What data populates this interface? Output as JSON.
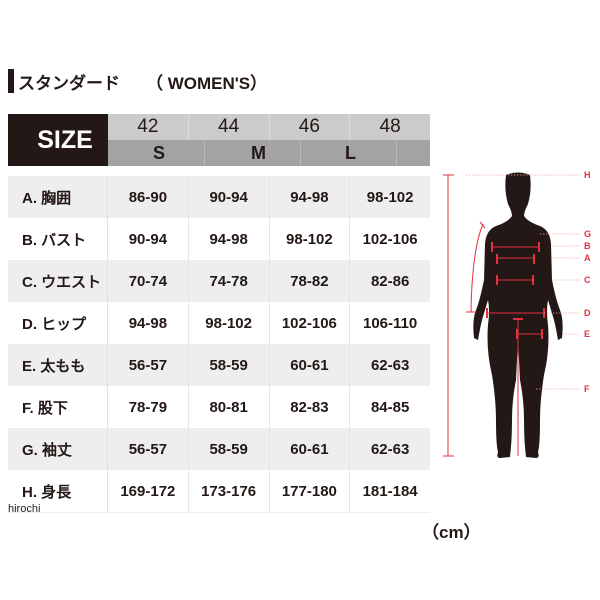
{
  "title": {
    "main": "スタンダード",
    "sub": "（ WOMEN'S）"
  },
  "header": {
    "size_label": "SIZE",
    "numbers": [
      "42",
      "44",
      "46",
      "48"
    ],
    "letters": [
      "S",
      "M",
      "L"
    ]
  },
  "rows": [
    {
      "label": "A. 胸囲",
      "values": [
        "86-90",
        "90-94",
        "94-98",
        "98-102"
      ]
    },
    {
      "label": "B. バスト",
      "values": [
        "90-94",
        "94-98",
        "98-102",
        "102-106"
      ]
    },
    {
      "label": "C. ウエスト",
      "values": [
        "70-74",
        "74-78",
        "78-82",
        "82-86"
      ]
    },
    {
      "label": "D. ヒップ",
      "values": [
        "94-98",
        "98-102",
        "102-106",
        "106-110"
      ]
    },
    {
      "label": "E. 太もも",
      "values": [
        "56-57",
        "58-59",
        "60-61",
        "62-63"
      ]
    },
    {
      "label": "F. 股下",
      "values": [
        "78-79",
        "80-81",
        "82-83",
        "84-85"
      ]
    },
    {
      "label": "G. 袖丈",
      "values": [
        "56-57",
        "58-59",
        "60-61",
        "62-63"
      ]
    },
    {
      "label": "H. 身長",
      "values": [
        "169-172",
        "173-176",
        "177-180",
        "181-184"
      ]
    }
  ],
  "figure": {
    "labels": [
      "H",
      "G",
      "B",
      "A",
      "C",
      "D",
      "E",
      "F"
    ],
    "accent": "#e3313f",
    "silhouette": "#231815"
  },
  "watermark": "hirochi",
  "unit": "（cm）"
}
